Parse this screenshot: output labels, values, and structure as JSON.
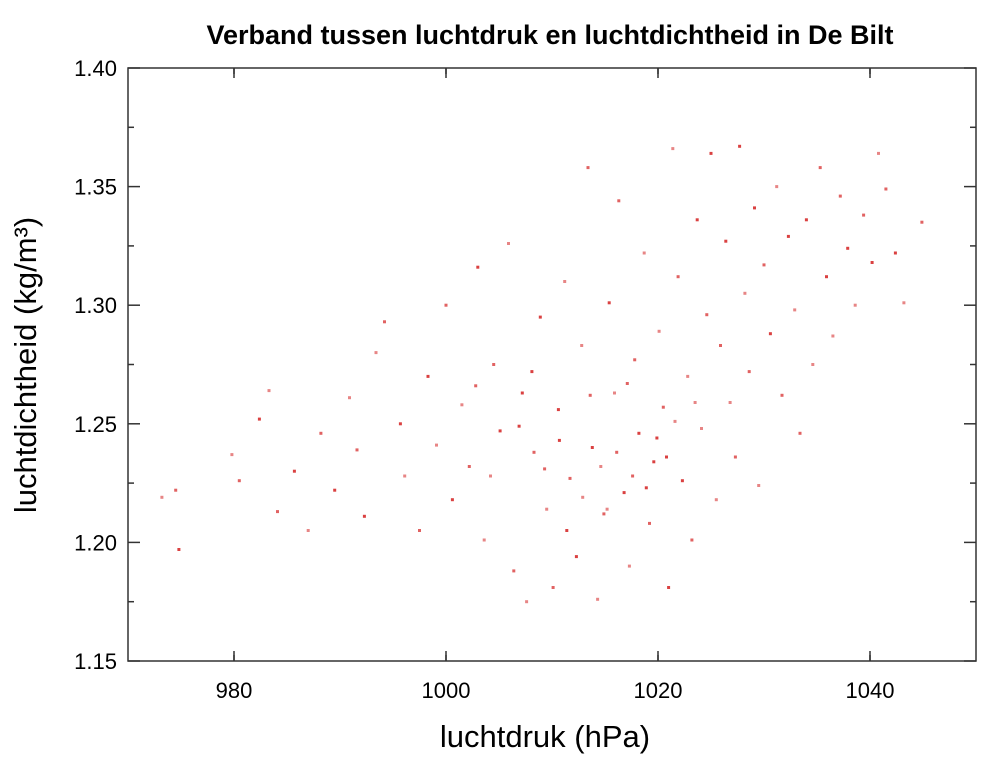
{
  "chart_data": {
    "type": "scatter",
    "title": "Verband tussen luchtdruk en luchtdichtheid in De Bilt",
    "xlabel": "luchtdruk (hPa)",
    "ylabel": "luchtdichtheid (kg/m³)",
    "xlim": [
      970,
      1050
    ],
    "ylim": [
      1.15,
      1.4
    ],
    "x_ticks": [
      980,
      1000,
      1020,
      1040
    ],
    "x_tick_labels": [
      "980",
      "1000",
      "1020",
      "1040"
    ],
    "y_ticks": [
      1.15,
      1.2,
      1.25,
      1.3,
      1.35,
      1.4
    ],
    "y_tick_labels": [
      "1.15",
      "1.20",
      "1.25",
      "1.30",
      "1.35",
      "1.40"
    ],
    "grid": false,
    "color": "#d42020",
    "series": [
      {
        "points": [
          [
            973.2,
            1.219
          ],
          [
            974.5,
            1.222
          ],
          [
            974.8,
            1.197
          ],
          [
            979.8,
            1.237
          ],
          [
            980.5,
            1.226
          ],
          [
            982.4,
            1.252
          ],
          [
            983.3,
            1.264
          ],
          [
            984.1,
            1.213
          ],
          [
            985.7,
            1.23
          ],
          [
            987.0,
            1.205
          ],
          [
            988.2,
            1.246
          ],
          [
            989.5,
            1.222
          ],
          [
            990.9,
            1.261
          ],
          [
            991.6,
            1.239
          ],
          [
            992.3,
            1.211
          ],
          [
            993.4,
            1.28
          ],
          [
            994.2,
            1.293
          ],
          [
            995.7,
            1.25
          ],
          [
            996.1,
            1.228
          ],
          [
            997.5,
            1.205
          ],
          [
            998.3,
            1.27
          ],
          [
            999.1,
            1.241
          ],
          [
            1000.0,
            1.3
          ],
          [
            1000.6,
            1.218
          ],
          [
            1001.5,
            1.258
          ],
          [
            1002.2,
            1.232
          ],
          [
            1003.0,
            1.316
          ],
          [
            1003.6,
            1.201
          ],
          [
            1004.5,
            1.275
          ],
          [
            1005.1,
            1.247
          ],
          [
            1005.9,
            1.326
          ],
          [
            1006.4,
            1.188
          ],
          [
            1007.2,
            1.263
          ],
          [
            1007.6,
            1.175
          ],
          [
            1008.3,
            1.238
          ],
          [
            1008.9,
            1.295
          ],
          [
            1009.5,
            1.214
          ],
          [
            1010.1,
            1.181
          ],
          [
            1010.6,
            1.256
          ],
          [
            1011.2,
            1.31
          ],
          [
            1011.7,
            1.227
          ],
          [
            1012.3,
            1.194
          ],
          [
            1012.8,
            1.283
          ],
          [
            1013.4,
            1.358
          ],
          [
            1013.8,
            1.24
          ],
          [
            1014.3,
            1.176
          ],
          [
            1014.9,
            1.212
          ],
          [
            1015.4,
            1.301
          ],
          [
            1015.9,
            1.263
          ],
          [
            1016.3,
            1.344
          ],
          [
            1016.8,
            1.221
          ],
          [
            1017.3,
            1.19
          ],
          [
            1017.8,
            1.277
          ],
          [
            1018.2,
            1.246
          ],
          [
            1018.7,
            1.322
          ],
          [
            1019.2,
            1.208
          ],
          [
            1019.6,
            1.234
          ],
          [
            1020.1,
            1.289
          ],
          [
            1020.5,
            1.257
          ],
          [
            1021.0,
            1.181
          ],
          [
            1021.4,
            1.366
          ],
          [
            1021.9,
            1.312
          ],
          [
            1022.3,
            1.226
          ],
          [
            1022.8,
            1.27
          ],
          [
            1023.2,
            1.201
          ],
          [
            1023.7,
            1.336
          ],
          [
            1024.1,
            1.248
          ],
          [
            1024.6,
            1.296
          ],
          [
            1025.0,
            1.364
          ],
          [
            1025.5,
            1.218
          ],
          [
            1025.9,
            1.283
          ],
          [
            1026.4,
            1.327
          ],
          [
            1026.8,
            1.259
          ],
          [
            1027.3,
            1.236
          ],
          [
            1027.7,
            1.367
          ],
          [
            1028.2,
            1.305
          ],
          [
            1028.6,
            1.272
          ],
          [
            1029.1,
            1.341
          ],
          [
            1029.5,
            1.224
          ],
          [
            1030.0,
            1.317
          ],
          [
            1030.6,
            1.288
          ],
          [
            1031.2,
            1.35
          ],
          [
            1031.7,
            1.262
          ],
          [
            1032.3,
            1.329
          ],
          [
            1032.9,
            1.298
          ],
          [
            1033.4,
            1.246
          ],
          [
            1034.0,
            1.336
          ],
          [
            1034.6,
            1.275
          ],
          [
            1035.3,
            1.358
          ],
          [
            1035.9,
            1.312
          ],
          [
            1036.5,
            1.287
          ],
          [
            1037.2,
            1.346
          ],
          [
            1037.9,
            1.324
          ],
          [
            1038.6,
            1.3
          ],
          [
            1039.4,
            1.338
          ],
          [
            1040.2,
            1.318
          ],
          [
            1040.8,
            1.364
          ],
          [
            1041.5,
            1.349
          ],
          [
            1042.4,
            1.322
          ],
          [
            1043.2,
            1.301
          ],
          [
            1044.9,
            1.335
          ],
          [
            1010.7,
            1.243
          ],
          [
            1014.6,
            1.232
          ],
          [
            1017.6,
            1.228
          ],
          [
            1019.9,
            1.244
          ],
          [
            1012.9,
            1.219
          ],
          [
            1016.1,
            1.238
          ],
          [
            1018.9,
            1.223
          ],
          [
            1021.6,
            1.251
          ],
          [
            1013.6,
            1.262
          ],
          [
            1011.4,
            1.205
          ],
          [
            1015.2,
            1.214
          ],
          [
            1017.1,
            1.267
          ],
          [
            1020.8,
            1.236
          ],
          [
            1023.5,
            1.259
          ],
          [
            1009.3,
            1.231
          ],
          [
            1006.9,
            1.249
          ],
          [
            1004.2,
            1.228
          ],
          [
            1002.8,
            1.266
          ],
          [
            1008.1,
            1.272
          ]
        ]
      }
    ]
  }
}
